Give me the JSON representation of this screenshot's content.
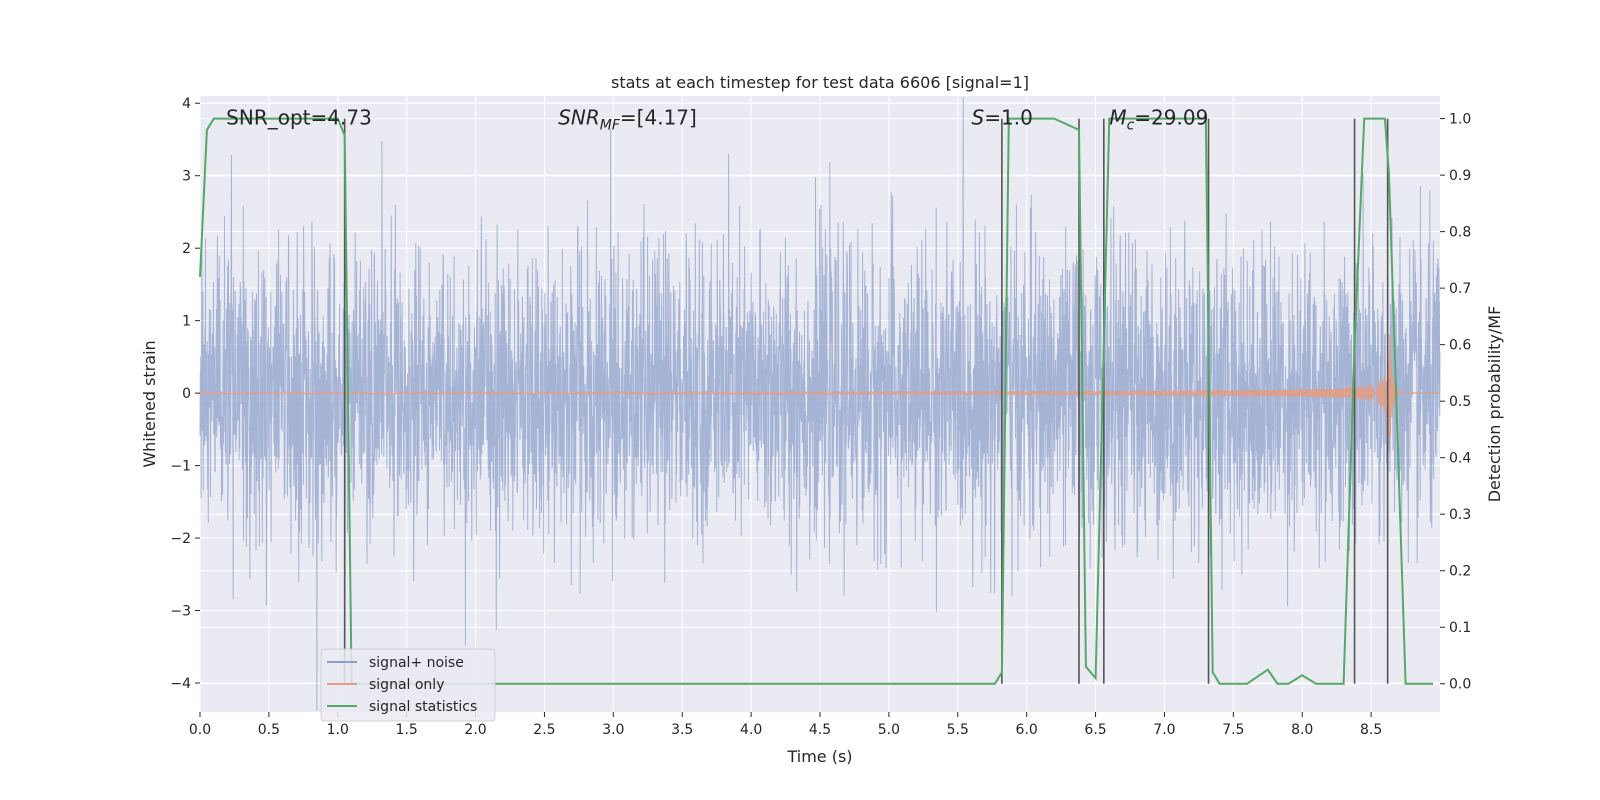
{
  "chart_data": {
    "type": "line",
    "title": "stats at each timestep for test data 6606 [signal=1]",
    "xlabel": "Time (s)",
    "ylabel": "Whitened strain",
    "ylabel_right": "Detection probability/MF",
    "xlim": [
      0.0,
      9.0
    ],
    "ylim": [
      -4.4,
      4.1
    ],
    "ylim_right": [
      -0.05,
      1.04
    ],
    "xticks": [
      "0.0",
      "0.5",
      "1.0",
      "1.5",
      "2.0",
      "2.5",
      "3.0",
      "3.5",
      "4.0",
      "4.5",
      "5.0",
      "5.5",
      "6.0",
      "6.5",
      "7.0",
      "7.5",
      "8.0",
      "8.5"
    ],
    "yticks": [
      "4",
      "3",
      "2",
      "1",
      "0",
      "−1",
      "−2",
      "−3",
      "−4"
    ],
    "yticks_right": [
      "1.0",
      "0.9",
      "0.8",
      "0.7",
      "0.6",
      "0.5",
      "0.4",
      "0.3",
      "0.2",
      "0.1",
      "0.0"
    ],
    "grid": true,
    "legend_position": "lower-left",
    "annotations": [
      {
        "text": "SNR_opt=4.73",
        "x": 0.19,
        "y": 3.82
      },
      {
        "text": "SNR_MF=[4.17]",
        "x": 2.6,
        "y": 3.82
      },
      {
        "text": "S=1.0",
        "x": 5.6,
        "y": 3.82
      },
      {
        "text": "M_c=29.09",
        "x": 6.6,
        "y": 3.82
      }
    ],
    "series": [
      {
        "name": "signal+ noise",
        "color": "#8da0cb",
        "note": "whitened strain noise, approx. standard deviation 1",
        "x_range": [
          0.0,
          9.0
        ],
        "std": 1.0
      },
      {
        "name": "signal only",
        "color": "#e39c83",
        "note": "chirp signal growing near merger at ~8.6 s",
        "merger_time": 8.63,
        "peak_amplitude": 1.0
      },
      {
        "name": "signal statistics",
        "color": "#55a868",
        "axis": "right",
        "x": [
          0.0,
          0.05,
          0.1,
          0.2,
          0.5,
          1.0,
          1.05,
          1.1,
          1.2,
          1.5,
          2.0,
          3.0,
          4.0,
          5.0,
          5.5,
          5.77,
          5.82,
          5.87,
          6.0,
          6.2,
          6.38,
          6.43,
          6.5,
          6.6,
          6.7,
          7.0,
          7.3,
          7.35,
          7.4,
          7.5,
          7.6,
          7.75,
          7.82,
          7.9,
          8.0,
          8.1,
          8.2,
          8.3,
          8.38,
          8.45,
          8.5,
          8.6,
          8.63,
          8.75,
          8.8,
          8.95
        ],
        "y": [
          0.72,
          0.98,
          1.0,
          1.0,
          1.0,
          1.0,
          0.97,
          0.0,
          0.0,
          0.0,
          0.0,
          0.0,
          0.0,
          0.0,
          0.0,
          0.0,
          0.02,
          1.0,
          1.0,
          1.0,
          0.98,
          0.03,
          0.01,
          1.0,
          1.0,
          1.0,
          1.0,
          0.02,
          0.0,
          0.0,
          0.0,
          0.025,
          0.0,
          0.0,
          0.015,
          0.0,
          0.0,
          0.0,
          0.6,
          1.0,
          1.0,
          1.0,
          0.9,
          0.0,
          0.0,
          0.0
        ]
      }
    ],
    "vertical_markers": {
      "color": "#555555",
      "x": [
        1.05,
        5.82,
        6.38,
        6.56,
        7.32,
        8.38,
        8.62
      ]
    }
  },
  "legend": {
    "items": [
      "signal+ noise",
      "signal only",
      "signal statistics"
    ]
  }
}
